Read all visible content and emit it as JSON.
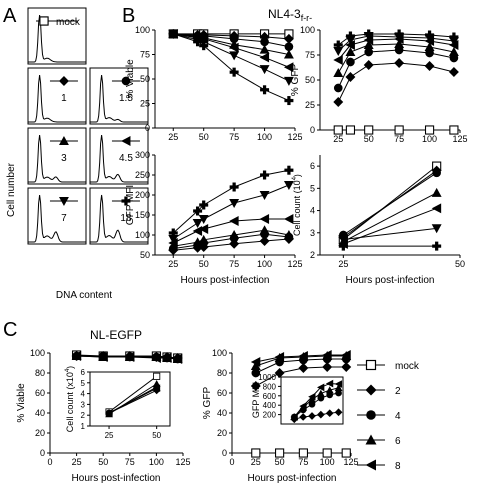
{
  "panel_letters": {
    "a": "A",
    "b": "B",
    "c": "C"
  },
  "titles": {
    "b_main": "NL4-3",
    "b_sub": "f-r-",
    "c_main": "NL-EGFP"
  },
  "axis_labels": {
    "cell_number": "Cell number",
    "dna_content": "DNA content",
    "pct_viable": "% Viable",
    "pct_gfp": "% GFP",
    "gfp_mfi": "GFP MFI",
    "cell_count": "Cell count (10",
    "cell_count_exp": "4",
    "cell_count_close": ")",
    "cell_count_x": "Cell count (x10",
    "hours": "Hours post-infection"
  },
  "hist_labels": [
    "mock",
    "1",
    "1.5",
    "3",
    "4.5",
    "7",
    "18"
  ],
  "legend": {
    "items": [
      {
        "label": "mock",
        "marker": "square"
      },
      {
        "label": "2",
        "marker": "diamond"
      },
      {
        "label": "4",
        "marker": "circle"
      },
      {
        "label": "6",
        "marker": "triangle-up"
      },
      {
        "label": "8",
        "marker": "triangle-left"
      }
    ]
  },
  "chart_data": [
    {
      "id": "B_viable",
      "type": "line",
      "x": [
        25,
        45,
        50,
        75,
        100,
        120
      ],
      "xlim": [
        10,
        125
      ],
      "ylim": [
        0,
        100
      ],
      "xticks": [
        25,
        50,
        75,
        100,
        125
      ],
      "yticks": [
        0,
        25,
        50,
        75,
        100
      ],
      "ylabel": "% Viable",
      "xlabel": "",
      "series": [
        {
          "marker": "square",
          "values": [
            96,
            96,
            96,
            96,
            96,
            96
          ]
        },
        {
          "marker": "diamond",
          "values": [
            96,
            95,
            95,
            94,
            93,
            91
          ]
        },
        {
          "marker": "circle",
          "values": [
            96,
            94,
            94,
            91,
            88,
            83
          ]
        },
        {
          "marker": "triangle-up",
          "values": [
            96,
            93,
            92,
            85,
            80,
            75
          ]
        },
        {
          "marker": "triangle-left",
          "values": [
            96,
            92,
            91,
            82,
            72,
            62
          ]
        },
        {
          "marker": "triangle-down",
          "values": [
            96,
            90,
            88,
            74,
            60,
            48
          ]
        },
        {
          "marker": "plus",
          "values": [
            96,
            88,
            84,
            57,
            39,
            28
          ]
        }
      ]
    },
    {
      "id": "B_gfp",
      "type": "line",
      "x": [
        25,
        35,
        50,
        75,
        100,
        120
      ],
      "xlim": [
        10,
        125
      ],
      "ylim": [
        0,
        100
      ],
      "xticks": [
        25,
        50,
        75,
        100,
        125
      ],
      "yticks": [
        0,
        25,
        50,
        75,
        100
      ],
      "ylabel": "% GFP",
      "xlabel": "",
      "series": [
        {
          "marker": "square",
          "values": [
            0,
            0,
            0,
            0,
            0,
            0
          ]
        },
        {
          "marker": "diamond",
          "values": [
            28,
            53,
            65,
            67,
            64,
            58
          ]
        },
        {
          "marker": "circle",
          "values": [
            42,
            68,
            78,
            80,
            77,
            72
          ]
        },
        {
          "marker": "triangle-up",
          "values": [
            57,
            78,
            85,
            86,
            83,
            78
          ]
        },
        {
          "marker": "triangle-left",
          "values": [
            70,
            85,
            90,
            91,
            89,
            85
          ]
        },
        {
          "marker": "triangle-down",
          "values": [
            79,
            90,
            94,
            93,
            92,
            89
          ]
        },
        {
          "marker": "plus",
          "values": [
            85,
            94,
            96,
            96,
            95,
            93
          ]
        }
      ]
    },
    {
      "id": "B_mfi",
      "type": "line",
      "x": [
        25,
        45,
        50,
        75,
        100,
        120
      ],
      "xlim": [
        10,
        125
      ],
      "ylim": [
        50,
        300
      ],
      "xticks": [
        25,
        50,
        75,
        100,
        125
      ],
      "yticks": [
        50,
        100,
        150,
        200,
        250,
        300
      ],
      "ylabel": "GFP MFI",
      "xlabel": "Hours post-infection",
      "series": [
        {
          "marker": "diamond",
          "values": [
            62,
            68,
            70,
            78,
            85,
            90
          ]
        },
        {
          "marker": "circle",
          "values": [
            66,
            75,
            80,
            92,
            102,
            95
          ]
        },
        {
          "marker": "triangle-up",
          "values": [
            72,
            82,
            88,
            100,
            112,
            100
          ]
        },
        {
          "marker": "triangle-left",
          "values": [
            80,
            110,
            115,
            135,
            140,
            140
          ]
        },
        {
          "marker": "triangle-down",
          "values": [
            90,
            130,
            140,
            180,
            200,
            225
          ]
        },
        {
          "marker": "plus",
          "values": [
            105,
            160,
            175,
            220,
            250,
            262
          ]
        }
      ]
    },
    {
      "id": "B_count",
      "type": "line",
      "x": [
        25,
        45
      ],
      "xlim": [
        20,
        50
      ],
      "ylim": [
        2,
        6.5
      ],
      "xticks": [
        25,
        50
      ],
      "yticks": [
        2,
        3,
        4,
        5,
        6
      ],
      "ylabel": "Cell count (10^4)",
      "xlabel": "Hours post-infection",
      "series": [
        {
          "marker": "square",
          "values": [
            2.7,
            6.0
          ]
        },
        {
          "marker": "diamond",
          "values": [
            2.8,
            5.8
          ]
        },
        {
          "marker": "circle",
          "values": [
            2.9,
            5.7
          ]
        },
        {
          "marker": "triangle-up",
          "values": [
            2.6,
            4.8
          ]
        },
        {
          "marker": "triangle-left",
          "values": [
            2.5,
            4.1
          ]
        },
        {
          "marker": "triangle-down",
          "values": [
            2.7,
            3.2
          ]
        },
        {
          "marker": "plus",
          "values": [
            2.4,
            2.4
          ]
        }
      ]
    },
    {
      "id": "C_viable",
      "type": "line",
      "x": [
        25,
        50,
        75,
        100,
        110,
        120
      ],
      "xlim": [
        0,
        125
      ],
      "ylim": [
        0,
        100
      ],
      "xticks": [
        0,
        25,
        50,
        75,
        100,
        125
      ],
      "yticks": [
        0,
        20,
        40,
        60,
        80,
        100
      ],
      "ylabel": "% Viable",
      "xlabel": "Hours post-infection",
      "series": [
        {
          "marker": "square",
          "values": [
            98,
            97,
            97,
            97,
            96,
            95
          ]
        },
        {
          "marker": "diamond",
          "values": [
            97,
            97,
            97,
            96,
            96,
            95
          ]
        },
        {
          "marker": "circle",
          "values": [
            97,
            97,
            96,
            96,
            95,
            94
          ]
        },
        {
          "marker": "triangle-up",
          "values": [
            97,
            96,
            96,
            96,
            95,
            94
          ]
        },
        {
          "marker": "triangle-left",
          "values": [
            97,
            96,
            96,
            95,
            95,
            94
          ]
        }
      ]
    },
    {
      "id": "C_viable_inset",
      "type": "line",
      "x": [
        25,
        50
      ],
      "xlim": [
        15,
        57
      ],
      "ylim": [
        1,
        6
      ],
      "xticks": [
        25,
        50
      ],
      "yticks": [
        1,
        2,
        3,
        4,
        5,
        6
      ],
      "ylabel": "Cell count (x10^4)",
      "xlabel": "",
      "series": [
        {
          "marker": "square",
          "values": [
            2.3,
            5.6
          ]
        },
        {
          "marker": "diamond",
          "values": [
            2.2,
            4.3
          ]
        },
        {
          "marker": "circle",
          "values": [
            2.2,
            4.6
          ]
        },
        {
          "marker": "triangle-up",
          "values": [
            2.1,
            4.9
          ]
        },
        {
          "marker": "triangle-left",
          "values": [
            2.2,
            4.5
          ]
        }
      ]
    },
    {
      "id": "C_gfp",
      "type": "line",
      "x": [
        25,
        50,
        75,
        100,
        120
      ],
      "xlim": [
        0,
        125
      ],
      "ylim": [
        0,
        100
      ],
      "xticks": [
        0,
        25,
        50,
        75,
        100,
        125
      ],
      "yticks": [
        0,
        20,
        40,
        60,
        80,
        100
      ],
      "ylabel": "% GFP",
      "xlabel": "Hours post-infection",
      "series": [
        {
          "marker": "square",
          "values": [
            0,
            0,
            0,
            0,
            0
          ]
        },
        {
          "marker": "diamond",
          "values": [
            67,
            80,
            85,
            86,
            86
          ]
        },
        {
          "marker": "circle",
          "values": [
            80,
            91,
            93,
            94,
            94
          ]
        },
        {
          "marker": "triangle-up",
          "values": [
            87,
            95,
            96,
            97,
            97
          ]
        },
        {
          "marker": "triangle-left",
          "values": [
            91,
            96,
            97,
            98,
            98
          ]
        }
      ]
    },
    {
      "id": "C_gfp_inset",
      "type": "line",
      "x": [
        70,
        80,
        90,
        100,
        110,
        120
      ],
      "xlim": [
        55,
        125
      ],
      "ylim": [
        0,
        1000
      ],
      "xticks": [],
      "yticks": [
        200,
        400,
        600,
        800,
        1000
      ],
      "ylabel": "GFP MFI",
      "xlabel": "",
      "series": [
        {
          "marker": "diamond",
          "values": [
            100,
            150,
            170,
            200,
            230,
            250
          ]
        },
        {
          "marker": "circle",
          "values": [
            150,
            300,
            420,
            550,
            620,
            660
          ]
        },
        {
          "marker": "triangle-up",
          "values": [
            150,
            350,
            520,
            650,
            720,
            770
          ]
        },
        {
          "marker": "triangle-left",
          "values": [
            150,
            380,
            580,
            780,
            860,
            850
          ]
        }
      ]
    }
  ]
}
